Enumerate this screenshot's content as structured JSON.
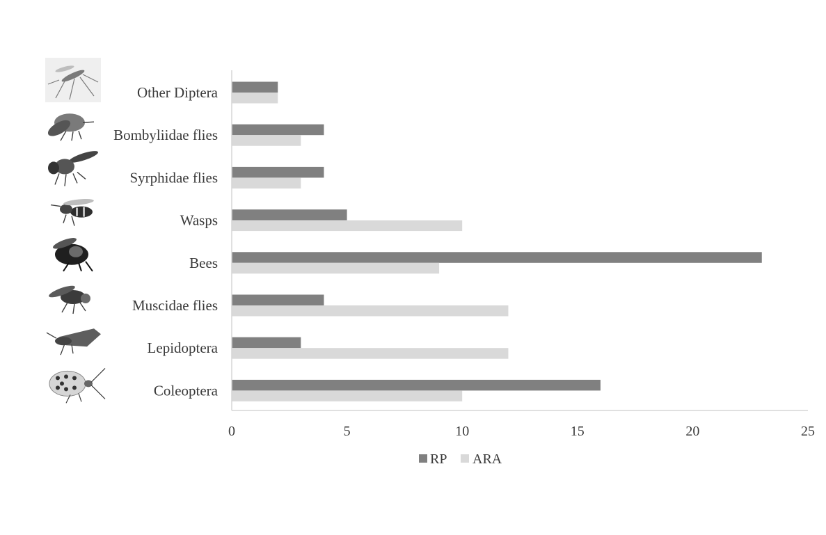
{
  "chart_data": {
    "type": "bar",
    "orientation": "horizontal",
    "categories": [
      "Other Diptera",
      "Bombyliidae flies",
      "Syrphidae flies",
      "Wasps",
      "Bees",
      "Muscidae flies",
      "Lepidoptera",
      "Coleoptera"
    ],
    "category_icons": [
      "mosquito-icon",
      "bee-fly-icon",
      "hoverfly-icon",
      "wasp-icon",
      "bumblebee-icon",
      "housefly-icon",
      "moth-icon",
      "beetle-icon"
    ],
    "series": [
      {
        "name": "RP",
        "color": "#808080",
        "values": [
          2,
          4,
          4,
          5,
          23,
          4,
          3,
          16
        ]
      },
      {
        "name": "ARA",
        "color": "#d9d9d9",
        "values": [
          2,
          3,
          3,
          10,
          9,
          12,
          12,
          10
        ]
      }
    ],
    "xlim": [
      0,
      25
    ],
    "xticks": [
      0,
      5,
      10,
      15,
      20,
      25
    ],
    "title": "",
    "xlabel": "",
    "ylabel": "",
    "grid": false,
    "legend_position": "bottom"
  }
}
